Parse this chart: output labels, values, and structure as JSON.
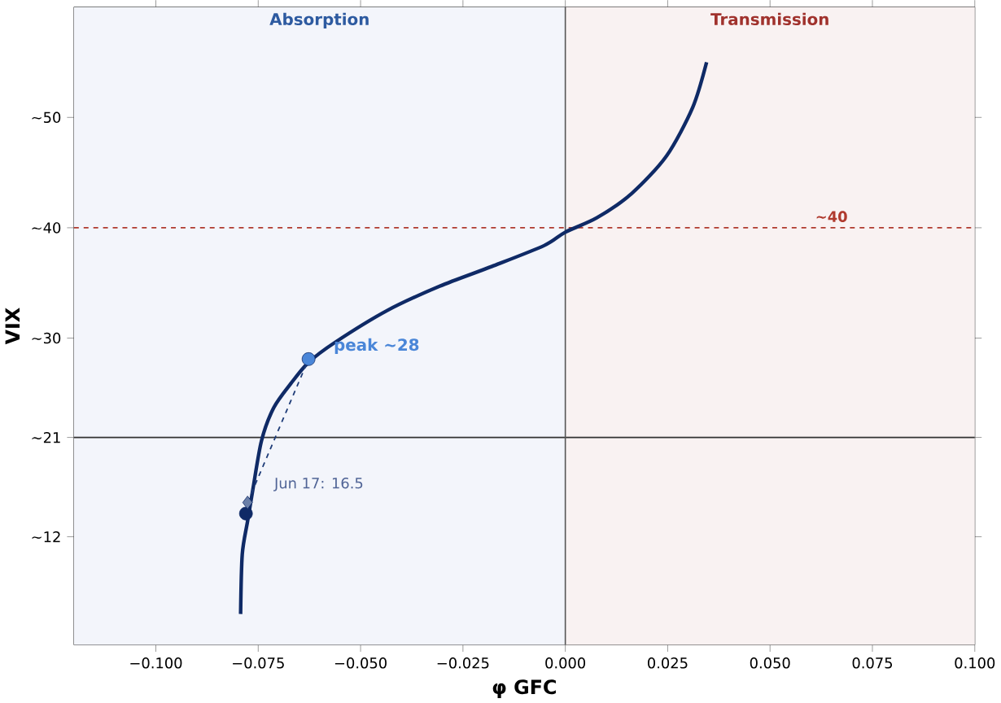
{
  "chart_data": {
    "type": "line",
    "xlabel": "φ GFC",
    "ylabel": "VIX",
    "xlim": [
      -0.12,
      0.1
    ],
    "ylim": [
      2.2,
      60
    ],
    "xticks": [
      {
        "value": -0.1,
        "label": "−0.100"
      },
      {
        "value": -0.075,
        "label": "−0.075"
      },
      {
        "value": -0.05,
        "label": "−0.050"
      },
      {
        "value": -0.025,
        "label": "−0.025"
      },
      {
        "value": 0.0,
        "label": "0.000"
      },
      {
        "value": 0.025,
        "label": "0.025"
      },
      {
        "value": 0.05,
        "label": "0.050"
      },
      {
        "value": 0.075,
        "label": "0.075"
      },
      {
        "value": 0.1,
        "label": "0.100"
      }
    ],
    "yticks": [
      {
        "value": 12,
        "label": "~12"
      },
      {
        "value": 21,
        "label": "~21"
      },
      {
        "value": 30,
        "label": "~30"
      },
      {
        "value": 40,
        "label": "~40"
      },
      {
        "value": 50,
        "label": "~50"
      }
    ],
    "grid": true,
    "series": [
      {
        "color": "#0f2a66",
        "marker": "none",
        "x": [
          -0.0793,
          -0.0789,
          -0.0776,
          -0.0763,
          -0.0742,
          -0.0712,
          -0.067,
          -0.0627,
          -0.0563,
          -0.0435,
          -0.0307,
          -0.0179,
          -0.0051,
          0.0,
          0.0077,
          0.0162,
          0.0247,
          0.0311,
          0.0345
        ],
        "values": [
          5.0,
          10.4,
          13.4,
          16.3,
          20.7,
          23.7,
          25.9,
          27.8,
          29.6,
          32.5,
          34.7,
          36.5,
          38.4,
          39.6,
          40.9,
          43.1,
          46.5,
          50.9,
          55.0
        ]
      },
      {
        "type": "scatter",
        "color": "#4a86d8",
        "marker": "circle",
        "x": [
          -0.0627
        ],
        "values": [
          28.1
        ]
      },
      {
        "type": "scatter",
        "color": "#0f2a66",
        "marker": "circle",
        "x": [
          -0.078
        ],
        "values": [
          14.1
        ]
      },
      {
        "type": "scatter",
        "color": "#6a7fa8",
        "marker": "diamond",
        "x": [
          -0.0776
        ],
        "values": [
          15.1
        ]
      },
      {
        "type": "line",
        "color": "#1e3c78",
        "marker": "none",
        "line_style": "dashed",
        "x": [
          -0.0776,
          -0.0627
        ],
        "values": [
          15.1,
          28.1
        ]
      }
    ],
    "ref_lines": [
      {
        "axis": "y",
        "value": 40,
        "label": "~40",
        "color": "#b03a2e",
        "line_style": "dashed"
      },
      {
        "axis": "y",
        "value": 21,
        "color": "#333333",
        "line_style": "solid"
      },
      {
        "axis": "x",
        "value": 0,
        "color": "#555555",
        "line_style": "solid"
      }
    ],
    "bands": [
      {
        "axis": "x",
        "from": -0.12,
        "to": 0,
        "label": "Absorption",
        "color": "#f3f5fb"
      },
      {
        "axis": "x",
        "from": 0,
        "to": 0.1,
        "label": "Transmission",
        "color": "#f9f2f2"
      }
    ],
    "annotations": [
      {
        "text": "peak ~28",
        "x": -0.0627,
        "y": 28.1
      },
      {
        "text": "Jun 17: 16.5",
        "x": -0.078,
        "y": 14.1
      }
    ]
  }
}
